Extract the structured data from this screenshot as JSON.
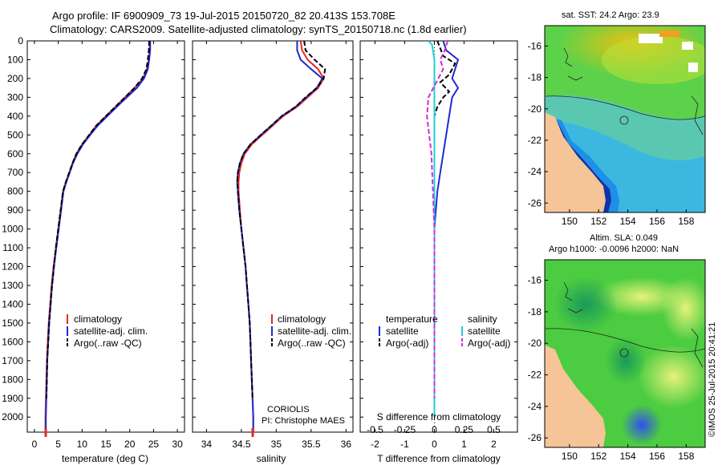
{
  "title": {
    "line1": "Argo profile: IF 6900909_73 19-Jul-2015 20150720_82 20.413S 153.708E",
    "line2": "Climatology: CARS2009. Satellite-adjusted climatology: synTS_20150718.nc (1.8d earlier)"
  },
  "credit": "©IMOS 25-Jul-2015 20:41:21",
  "chart_data": [
    {
      "type": "line",
      "title": "",
      "xlabel": "temperature (deg C)",
      "ylabel": "",
      "xlim": [
        -1.5,
        31.5
      ],
      "ylim": [
        2080,
        0
      ],
      "xticks": [
        0,
        5,
        10,
        15,
        20,
        25,
        30
      ],
      "yticks": [
        0,
        100,
        200,
        300,
        400,
        500,
        600,
        700,
        800,
        900,
        1000,
        1100,
        1200,
        1300,
        1400,
        1500,
        1600,
        1700,
        1800,
        1900,
        2000
      ],
      "legend": [
        "climatology",
        "satellite-adj. clim.",
        "Argo(..raw -QC)"
      ],
      "series": [
        {
          "name": "climatology",
          "color": "#e8281e",
          "style": "solid",
          "points": [
            [
              24.2,
              0
            ],
            [
              24.2,
              50
            ],
            [
              24.0,
              100
            ],
            [
              23.6,
              150
            ],
            [
              22.8,
              200
            ],
            [
              21.0,
              250
            ],
            [
              19.0,
              300
            ],
            [
              17.0,
              350
            ],
            [
              15.0,
              400
            ],
            [
              13.0,
              450
            ],
            [
              11.5,
              500
            ],
            [
              10.0,
              550
            ],
            [
              8.8,
              600
            ],
            [
              8.0,
              650
            ],
            [
              7.3,
              700
            ],
            [
              6.6,
              750
            ],
            [
              6.0,
              800
            ],
            [
              5.5,
              900
            ],
            [
              5.0,
              1000
            ],
            [
              4.5,
              1100
            ],
            [
              4.0,
              1200
            ],
            [
              3.6,
              1300
            ],
            [
              3.3,
              1400
            ],
            [
              3.0,
              1500
            ],
            [
              2.8,
              1600
            ],
            [
              2.6,
              1700
            ],
            [
              2.5,
              1800
            ],
            [
              2.4,
              1900
            ],
            [
              2.3,
              2000
            ],
            [
              2.3,
              2080
            ]
          ]
        },
        {
          "name": "satellite-adj. clim.",
          "color": "#1f2bd1",
          "style": "solid",
          "points": [
            [
              24.3,
              0
            ],
            [
              24.3,
              50
            ],
            [
              24.1,
              100
            ],
            [
              23.8,
              150
            ],
            [
              23.0,
              200
            ],
            [
              21.5,
              250
            ],
            [
              19.4,
              300
            ],
            [
              17.3,
              350
            ],
            [
              15.3,
              400
            ],
            [
              13.3,
              450
            ],
            [
              11.7,
              500
            ],
            [
              10.2,
              550
            ],
            [
              9.0,
              600
            ],
            [
              8.1,
              650
            ],
            [
              7.4,
              700
            ],
            [
              6.7,
              750
            ],
            [
              6.1,
              800
            ],
            [
              5.6,
              900
            ],
            [
              5.1,
              1000
            ],
            [
              4.6,
              1100
            ],
            [
              4.1,
              1200
            ],
            [
              3.7,
              1300
            ],
            [
              3.4,
              1400
            ],
            [
              3.1,
              1500
            ],
            [
              2.9,
              1600
            ],
            [
              2.7,
              1700
            ],
            [
              2.6,
              1800
            ],
            [
              2.5,
              1900
            ],
            [
              2.4,
              2000
            ],
            [
              2.4,
              2080
            ]
          ]
        },
        {
          "name": "Argo(..raw -QC)",
          "color": "#000000",
          "style": "dash",
          "points": [
            [
              24.1,
              0
            ],
            [
              24.0,
              50
            ],
            [
              23.8,
              100
            ],
            [
              23.5,
              150
            ],
            [
              22.6,
              200
            ],
            [
              21.0,
              250
            ],
            [
              19.0,
              300
            ],
            [
              17.0,
              350
            ],
            [
              15.0,
              400
            ],
            [
              13.0,
              450
            ],
            [
              11.5,
              500
            ],
            [
              10.0,
              550
            ],
            [
              8.8,
              600
            ],
            [
              8.0,
              650
            ],
            [
              7.3,
              700
            ],
            [
              6.6,
              750
            ],
            [
              6.0,
              800
            ],
            [
              5.5,
              900
            ],
            [
              5.0,
              1000
            ],
            [
              4.5,
              1100
            ],
            [
              4.1,
              1200
            ],
            [
              3.7,
              1300
            ],
            [
              3.4,
              1400
            ],
            [
              3.1,
              1500
            ],
            [
              2.9,
              1600
            ],
            [
              2.7,
              1700
            ],
            [
              2.6,
              1800
            ],
            [
              2.5,
              1900
            ]
          ]
        }
      ]
    },
    {
      "type": "line",
      "title": "",
      "xlabel": "salinity",
      "ylabel": "",
      "xlim": [
        33.8,
        36.1
      ],
      "ylim": [
        2080,
        0
      ],
      "xticks": [
        34,
        34.5,
        35,
        35.5,
        36
      ],
      "legend": [
        "climatology",
        "satellite-adj. clim.",
        "Argo(..raw -QC)"
      ],
      "annotation": [
        "CORIOLIS",
        "PI: Christophe MAES"
      ],
      "series": [
        {
          "name": "climatology",
          "color": "#e8281e",
          "style": "solid",
          "points": [
            [
              35.35,
              0
            ],
            [
              35.37,
              50
            ],
            [
              35.45,
              100
            ],
            [
              35.6,
              150
            ],
            [
              35.68,
              200
            ],
            [
              35.6,
              250
            ],
            [
              35.45,
              300
            ],
            [
              35.3,
              350
            ],
            [
              35.1,
              400
            ],
            [
              34.95,
              450
            ],
            [
              34.8,
              500
            ],
            [
              34.65,
              550
            ],
            [
              34.55,
              600
            ],
            [
              34.5,
              650
            ],
            [
              34.47,
              700
            ],
            [
              34.46,
              750
            ],
            [
              34.46,
              800
            ],
            [
              34.48,
              900
            ],
            [
              34.5,
              1000
            ],
            [
              34.53,
              1100
            ],
            [
              34.56,
              1200
            ],
            [
              34.58,
              1300
            ],
            [
              34.6,
              1400
            ],
            [
              34.62,
              1500
            ],
            [
              34.63,
              1600
            ],
            [
              34.64,
              1700
            ],
            [
              34.65,
              1800
            ],
            [
              34.66,
              1900
            ],
            [
              34.67,
              2000
            ],
            [
              34.67,
              2080
            ]
          ]
        },
        {
          "name": "satellite-adj. clim.",
          "color": "#1f2bd1",
          "style": "solid",
          "points": [
            [
              35.3,
              0
            ],
            [
              35.3,
              50
            ],
            [
              35.35,
              100
            ],
            [
              35.5,
              150
            ],
            [
              35.66,
              200
            ],
            [
              35.58,
              250
            ],
            [
              35.43,
              300
            ],
            [
              35.28,
              350
            ],
            [
              35.08,
              400
            ],
            [
              34.93,
              450
            ],
            [
              34.78,
              500
            ],
            [
              34.63,
              550
            ],
            [
              34.53,
              600
            ],
            [
              34.48,
              650
            ],
            [
              34.45,
              700
            ],
            [
              34.44,
              750
            ],
            [
              34.45,
              800
            ],
            [
              34.47,
              900
            ],
            [
              34.5,
              1000
            ],
            [
              34.53,
              1100
            ],
            [
              34.56,
              1200
            ],
            [
              34.58,
              1300
            ],
            [
              34.6,
              1400
            ],
            [
              34.62,
              1500
            ],
            [
              34.63,
              1600
            ],
            [
              34.64,
              1700
            ],
            [
              34.65,
              1800
            ],
            [
              34.66,
              1900
            ],
            [
              34.67,
              2000
            ],
            [
              34.67,
              2080
            ]
          ]
        },
        {
          "name": "Argo(..raw -QC)",
          "color": "#000000",
          "style": "dash",
          "points": [
            [
              35.4,
              0
            ],
            [
              35.42,
              50
            ],
            [
              35.55,
              100
            ],
            [
              35.7,
              150
            ],
            [
              35.68,
              200
            ],
            [
              35.58,
              250
            ],
            [
              35.42,
              300
            ],
            [
              35.28,
              350
            ],
            [
              35.08,
              400
            ],
            [
              34.93,
              450
            ],
            [
              34.78,
              500
            ],
            [
              34.63,
              550
            ],
            [
              34.53,
              600
            ],
            [
              34.48,
              650
            ],
            [
              34.45,
              700
            ],
            [
              34.44,
              750
            ],
            [
              34.45,
              800
            ],
            [
              34.47,
              900
            ],
            [
              34.5,
              1000
            ],
            [
              34.53,
              1100
            ],
            [
              34.56,
              1200
            ],
            [
              34.58,
              1300
            ],
            [
              34.6,
              1400
            ],
            [
              34.62,
              1500
            ],
            [
              34.63,
              1600
            ],
            [
              34.64,
              1700
            ],
            [
              34.65,
              1800
            ],
            [
              34.66,
              1900
            ]
          ]
        }
      ]
    },
    {
      "type": "line",
      "title": "",
      "xlabel": "T difference from climatology",
      "xlabel_top": "S difference from climatology",
      "ylabel": "",
      "xlim": [
        -2.5,
        2.8
      ],
      "ylim": [
        2080,
        0
      ],
      "xticks": [
        -2,
        -1,
        0,
        1,
        2
      ],
      "xticks_s": {
        "labels": [
          "-0.5",
          "-0.25",
          "0",
          "0.25",
          "0.5"
        ],
        "values": [
          -0.5,
          -0.25,
          0,
          0.25,
          0.5
        ],
        "scale": 4
      },
      "legend_titles": [
        "temperature",
        "salinity"
      ],
      "legend": [
        "satellite",
        "Argo(-adj)",
        "satellite",
        "Argo(-adj)"
      ],
      "series": [
        {
          "name": "T satellite",
          "color": "#1f2bd1",
          "style": "solid",
          "points": [
            [
              0.3,
              0
            ],
            [
              0.4,
              50
            ],
            [
              0.8,
              100
            ],
            [
              0.6,
              200
            ],
            [
              0.8,
              250
            ],
            [
              0.6,
              300
            ],
            [
              0.5,
              400
            ],
            [
              0.4,
              500
            ],
            [
              0.3,
              600
            ],
            [
              0.2,
              700
            ],
            [
              0.1,
              800
            ],
            [
              0.05,
              900
            ],
            [
              0.0,
              1000
            ],
            [
              0.0,
              1500
            ],
            [
              0.0,
              2000
            ]
          ]
        },
        {
          "name": "T Argo(-adj)",
          "color": "#000000",
          "style": "dash",
          "points": [
            [
              0.1,
              0
            ],
            [
              0.3,
              80
            ],
            [
              0.7,
              120
            ],
            [
              0.5,
              180
            ],
            [
              0.2,
              220
            ],
            [
              0.5,
              270
            ],
            [
              0.3,
              300
            ],
            [
              0.1,
              350
            ],
            [
              0.0,
              400
            ],
            [
              0.0,
              1500
            ],
            [
              0.0,
              1900
            ]
          ]
        },
        {
          "name": "S satellite",
          "color": "#1ed0d8",
          "style": "solid",
          "points": [
            [
              -0.2,
              0
            ],
            [
              -0.08,
              20
            ],
            [
              -0.05,
              50
            ],
            [
              0.0,
              100
            ],
            [
              0.0,
              300
            ],
            [
              0.0,
              1000
            ],
            [
              0.0,
              1500
            ],
            [
              0.0,
              2000
            ]
          ]
        },
        {
          "name": "S Argo(-adj)",
          "color": "#d42bd4",
          "style": "dash",
          "points": [
            [
              0.45,
              0
            ],
            [
              0.35,
              50
            ],
            [
              0.2,
              100
            ],
            [
              0.3,
              150
            ],
            [
              -0.2,
              300
            ],
            [
              -0.25,
              400
            ],
            [
              -0.1,
              600
            ],
            [
              -0.05,
              800
            ],
            [
              0.0,
              1000
            ],
            [
              0.0,
              1500
            ],
            [
              0.0,
              1900
            ]
          ]
        }
      ]
    },
    {
      "type": "heatmap",
      "title": "sat. SST: 24.2  Argo: 23.9",
      "xticks": [
        150,
        152,
        154,
        156,
        158
      ],
      "yticks": [
        -16,
        -18,
        -20,
        -22,
        -24,
        -26
      ],
      "xlim": [
        148.3,
        159.3
      ],
      "ylim": [
        -26.6,
        -14.7
      ],
      "colors": {
        "land": "#f5c497",
        "warm": "#f0c010",
        "mid": "#40c040",
        "cool": "#20a0e0",
        "cold": "#1020a0",
        "missing": "#ffffff"
      }
    },
    {
      "type": "heatmap",
      "title": "Altim. SLA: 0.049",
      "subtitle": "Argo h1000: -0.0096 h2000: NaN",
      "xticks": [
        150,
        152,
        154,
        156,
        158
      ],
      "yticks": [
        -16,
        -18,
        -20,
        -22,
        -24,
        -26
      ],
      "xlim": [
        148.3,
        159.3
      ],
      "ylim": [
        -26.6,
        -14.7
      ],
      "colors": {
        "land": "#f5c497",
        "high": "#d8f060",
        "mid": "#30c030",
        "low": "#20a060",
        "lowest": "#3050f0"
      }
    }
  ]
}
